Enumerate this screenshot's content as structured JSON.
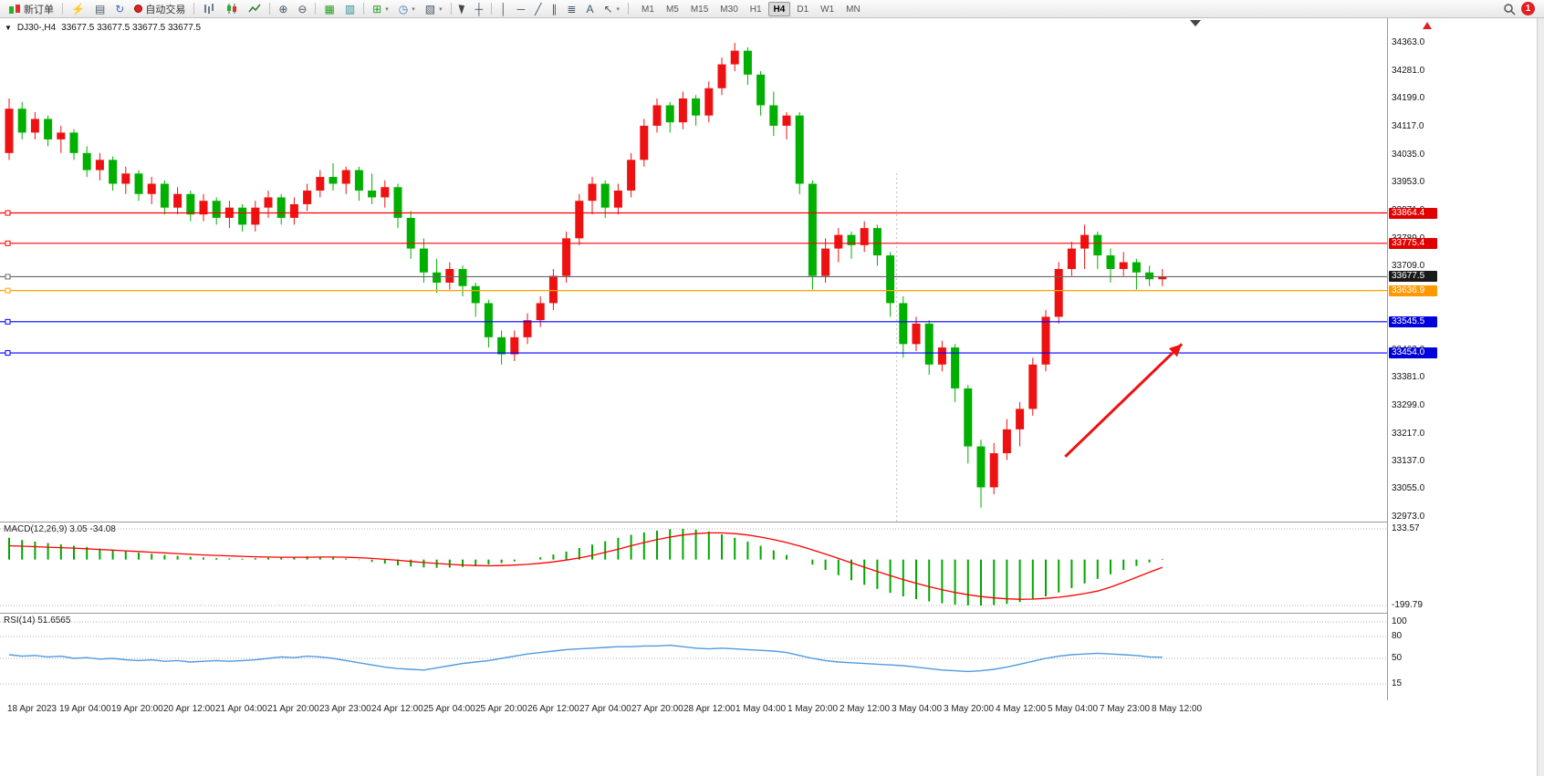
{
  "toolbar": {
    "new_order_label": "新订单",
    "auto_trading_label": "自动交易",
    "timeframes": [
      "M1",
      "M5",
      "M15",
      "M30",
      "H1",
      "H4",
      "D1",
      "W1",
      "MN"
    ],
    "active_timeframe": "H4",
    "notification_count": "1",
    "icons": {
      "lightning": "⚡",
      "profiles": "▤",
      "refresh": "↻",
      "zoom_in": "⊕",
      "zoom_out": "⊖",
      "tile": "▦",
      "cascade": "▥",
      "indicators": "⊞",
      "periods": "◷",
      "templates": "▧",
      "crosshair": "┼",
      "vline": "│",
      "hline": "─",
      "trendline": "╱",
      "channel": "∥",
      "fibo": "≣",
      "text_tool": "A",
      "arrows": "↖",
      "dropdown": "▾",
      "symbol_dropdown": "▼"
    }
  },
  "chart_header": {
    "symbol_period": "DJ30-,H4",
    "ohlc": "33677.5 33677.5 33677.5 33677.5"
  },
  "indicators": {
    "macd_label": "MACD(12,26,9) 3.05 -34.08",
    "rsi_label": "RSI(14) 51.6565"
  },
  "chart_data": {
    "type": "candlestick",
    "symbol": "DJ30-",
    "timeframe": "H4",
    "up_color": "#ee1111",
    "down_color": "#00b000",
    "ylim": [
      32973.0,
      34363.0
    ],
    "y_ticks": [
      34363.0,
      34281.0,
      34199.0,
      34117.0,
      34035.0,
      33953.0,
      33871.0,
      33789.0,
      33709.0,
      33627.0,
      33545.0,
      33463.0,
      33381.0,
      33299.0,
      33217.0,
      33137.0,
      33055.0,
      32973.0
    ],
    "x_labels": [
      "18 Apr 2023",
      "19 Apr 04:00",
      "19 Apr 20:00",
      "20 Apr 12:00",
      "21 Apr 04:00",
      "21 Apr 20:00",
      "23 Apr 23:00",
      "24 Apr 12:00",
      "25 Apr 04:00",
      "25 Apr 20:00",
      "26 Apr 12:00",
      "27 Apr 04:00",
      "27 Apr 20:00",
      "28 Apr 12:00",
      "1 May 04:00",
      "1 May 20:00",
      "2 May 12:00",
      "3 May 04:00",
      "3 May 20:00",
      "4 May 12:00",
      "5 May 04:00",
      "7 May 23:00",
      "8 May 12:00"
    ],
    "candles": [
      [
        34040,
        34200,
        34020,
        34170
      ],
      [
        34170,
        34190,
        34080,
        34100
      ],
      [
        34100,
        34160,
        34080,
        34140
      ],
      [
        34140,
        34150,
        34060,
        34080
      ],
      [
        34080,
        34120,
        34040,
        34100
      ],
      [
        34100,
        34110,
        34020,
        34040
      ],
      [
        34040,
        34060,
        33970,
        33990
      ],
      [
        33990,
        34040,
        33960,
        34020
      ],
      [
        34020,
        34030,
        33930,
        33950
      ],
      [
        33950,
        34000,
        33920,
        33980
      ],
      [
        33980,
        33990,
        33900,
        33920
      ],
      [
        33920,
        33970,
        33890,
        33950
      ],
      [
        33950,
        33960,
        33860,
        33880
      ],
      [
        33880,
        33940,
        33860,
        33920
      ],
      [
        33920,
        33930,
        33840,
        33860
      ],
      [
        33860,
        33920,
        33840,
        33900
      ],
      [
        33900,
        33910,
        33830,
        33850
      ],
      [
        33850,
        33900,
        33820,
        33880
      ],
      [
        33880,
        33890,
        33810,
        33830
      ],
      [
        33830,
        33900,
        33810,
        33880
      ],
      [
        33880,
        33930,
        33850,
        33910
      ],
      [
        33910,
        33920,
        33830,
        33850
      ],
      [
        33850,
        33910,
        33830,
        33890
      ],
      [
        33890,
        33950,
        33870,
        33930
      ],
      [
        33930,
        33990,
        33910,
        33970
      ],
      [
        33970,
        34010,
        33930,
        33950
      ],
      [
        33950,
        34000,
        33920,
        33990
      ],
      [
        33990,
        34000,
        33900,
        33930
      ],
      [
        33930,
        33980,
        33890,
        33910
      ],
      [
        33910,
        33960,
        33880,
        33940
      ],
      [
        33940,
        33950,
        33820,
        33850
      ],
      [
        33850,
        33870,
        33730,
        33760
      ],
      [
        33760,
        33790,
        33660,
        33690
      ],
      [
        33690,
        33730,
        33630,
        33660
      ],
      [
        33660,
        33720,
        33640,
        33700
      ],
      [
        33700,
        33710,
        33620,
        33650
      ],
      [
        33650,
        33660,
        33560,
        33600
      ],
      [
        33600,
        33610,
        33470,
        33500
      ],
      [
        33500,
        33520,
        33420,
        33450
      ],
      [
        33450,
        33520,
        33430,
        33500
      ],
      [
        33500,
        33570,
        33480,
        33550
      ],
      [
        33550,
        33620,
        33530,
        33600
      ],
      [
        33600,
        33700,
        33580,
        33680
      ],
      [
        33680,
        33810,
        33660,
        33790
      ],
      [
        33790,
        33920,
        33770,
        33900
      ],
      [
        33900,
        33970,
        33860,
        33950
      ],
      [
        33950,
        33960,
        33850,
        33880
      ],
      [
        33880,
        33950,
        33860,
        33930
      ],
      [
        33930,
        34040,
        33910,
        34020
      ],
      [
        34020,
        34140,
        34000,
        34120
      ],
      [
        34120,
        34200,
        34100,
        34180
      ],
      [
        34180,
        34190,
        34100,
        34130
      ],
      [
        34130,
        34220,
        34110,
        34200
      ],
      [
        34200,
        34210,
        34120,
        34150
      ],
      [
        34150,
        34250,
        34130,
        34230
      ],
      [
        34230,
        34320,
        34210,
        34300
      ],
      [
        34300,
        34363,
        34280,
        34340
      ],
      [
        34340,
        34350,
        34240,
        34270
      ],
      [
        34270,
        34280,
        34150,
        34180
      ],
      [
        34180,
        34220,
        34090,
        34120
      ],
      [
        34120,
        34160,
        34080,
        34150
      ],
      [
        34150,
        34160,
        33920,
        33950
      ],
      [
        33950,
        33960,
        33640,
        33680
      ],
      [
        33680,
        33790,
        33660,
        33760
      ],
      [
        33760,
        33820,
        33720,
        33800
      ],
      [
        33800,
        33810,
        33730,
        33770
      ],
      [
        33770,
        33840,
        33750,
        33820
      ],
      [
        33820,
        33830,
        33710,
        33740
      ],
      [
        33740,
        33750,
        33560,
        33600
      ],
      [
        33600,
        33620,
        33440,
        33480
      ],
      [
        33480,
        33560,
        33460,
        33540
      ],
      [
        33540,
        33550,
        33390,
        33420
      ],
      [
        33420,
        33490,
        33400,
        33470
      ],
      [
        33470,
        33480,
        33310,
        33350
      ],
      [
        33350,
        33360,
        33130,
        33180
      ],
      [
        33180,
        33200,
        33000,
        33060
      ],
      [
        33060,
        33190,
        33040,
        33160
      ],
      [
        33160,
        33260,
        33140,
        33230
      ],
      [
        33230,
        33310,
        33180,
        33290
      ],
      [
        33290,
        33440,
        33270,
        33420
      ],
      [
        33420,
        33580,
        33400,
        33560
      ],
      [
        33560,
        33720,
        33540,
        33700
      ],
      [
        33700,
        33780,
        33680,
        33760
      ],
      [
        33760,
        33830,
        33700,
        33800
      ],
      [
        33800,
        33810,
        33700,
        33740
      ],
      [
        33740,
        33760,
        33660,
        33700
      ],
      [
        33700,
        33750,
        33680,
        33720
      ],
      [
        33720,
        33730,
        33640,
        33690
      ],
      [
        33690,
        33710,
        33650,
        33670
      ],
      [
        33670,
        33700,
        33650,
        33677.5
      ]
    ],
    "hlines": [
      {
        "value": 33864.4,
        "label": "33864.4",
        "color": "#ff0000",
        "label_bg": "#e00000"
      },
      {
        "value": 33775.4,
        "label": "33775.4",
        "color": "#ff0000",
        "label_bg": "#e00000"
      },
      {
        "value": 33677.5,
        "label": "33677.5",
        "color": "#666666",
        "label_bg": "#1a1a1a"
      },
      {
        "value": 33636.9,
        "label": "33636.9",
        "color": "#ffa200",
        "label_bg": "#ff9900"
      },
      {
        "value": 33545.5,
        "label": "33545.5",
        "color": "#0000ff",
        "label_bg": "#0000dd"
      },
      {
        "value": 33454.0,
        "label": "33454.0",
        "color": "#0000ff",
        "label_bg": "#0000dd"
      }
    ],
    "arrow": {
      "color": "#ee1111",
      "from": {
        "bar": 81.5,
        "price": 33150
      },
      "to": {
        "bar": 90.5,
        "price": 33480
      }
    },
    "vline_bar": 68.5,
    "macd": {
      "title": "MACD(12,26,9)",
      "values_text": "3.05 -34.08",
      "ylim": [
        -199.79,
        133.57
      ],
      "axis_labels": [
        "133.57",
        "-199.79"
      ],
      "hist_color": "#00a800",
      "signal_color": "#ff0000",
      "histogram": [
        95,
        85,
        78,
        72,
        66,
        60,
        55,
        48,
        42,
        36,
        30,
        25,
        20,
        16,
        12,
        9,
        7,
        5,
        4,
        6,
        8,
        10,
        12,
        14,
        13,
        10,
        5,
        -2,
        -10,
        -18,
        -25,
        -30,
        -34,
        -36,
        -35,
        -32,
        -28,
        -22,
        -15,
        -8,
        0,
        10,
        22,
        35,
        50,
        65,
        80,
        95,
        108,
        118,
        126,
        132,
        134,
        130,
        122,
        110,
        95,
        78,
        60,
        40,
        20,
        0,
        -22,
        -45,
        -68,
        -90,
        -110,
        -128,
        -145,
        -160,
        -172,
        -182,
        -190,
        -196,
        -199,
        -200,
        -198,
        -193,
        -185,
        -174,
        -160,
        -143,
        -124,
        -104,
        -84,
        -64,
        -45,
        -28,
        -12,
        3.05
      ],
      "signal": [
        60,
        58,
        56,
        54,
        52,
        50,
        47,
        44,
        41,
        38,
        35,
        32,
        29,
        26,
        23,
        20,
        18,
        16,
        14,
        12,
        11,
        10,
        10,
        10,
        11,
        11,
        10,
        8,
        5,
        1,
        -3,
        -8,
        -13,
        -17,
        -21,
        -24,
        -26,
        -27,
        -26,
        -24,
        -21,
        -16,
        -10,
        -2,
        7,
        18,
        31,
        45,
        60,
        74,
        87,
        98,
        107,
        113,
        116,
        116,
        113,
        107,
        98,
        87,
        74,
        59,
        42,
        24,
        5,
        -14,
        -33,
        -52,
        -70,
        -87,
        -103,
        -118,
        -131,
        -143,
        -153,
        -161,
        -167,
        -171,
        -173,
        -172,
        -169,
        -164,
        -157,
        -148,
        -137,
        -120,
        -99,
        -77,
        -55,
        -34.08
      ]
    },
    "rsi": {
      "title": "RSI(14)",
      "value_text": "51.6565",
      "ylim": [
        0,
        100
      ],
      "levels": [
        80,
        50,
        15
      ],
      "color": "#4f9be0",
      "values": [
        55,
        53,
        54,
        52,
        53,
        50,
        51,
        49,
        50,
        48,
        47,
        48,
        46,
        47,
        45,
        46,
        47,
        46,
        47,
        48,
        50,
        52,
        51,
        53,
        52,
        50,
        47,
        44,
        41,
        38,
        36,
        35,
        34,
        37,
        40,
        43,
        45,
        47,
        50,
        53,
        56,
        58,
        60,
        62,
        63,
        64,
        65,
        66,
        66,
        67,
        67,
        68,
        66,
        64,
        63,
        64,
        63,
        62,
        61,
        60,
        58,
        54,
        50,
        47,
        45,
        44,
        43,
        42,
        41,
        40,
        38,
        36,
        34,
        33,
        32,
        33,
        35,
        38,
        42,
        46,
        50,
        53,
        55,
        56,
        57,
        56,
        55,
        54,
        52,
        51.66
      ]
    }
  }
}
